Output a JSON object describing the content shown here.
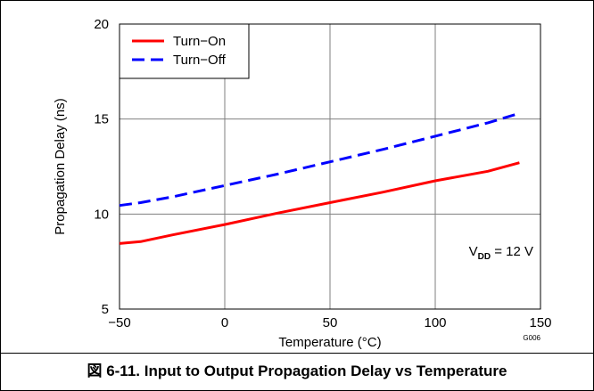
{
  "chart_data": {
    "type": "line",
    "xlabel": "Temperature (°C)",
    "ylabel": "Propagation Delay (ns)",
    "xlim": [
      -50,
      150
    ],
    "ylim": [
      5,
      20
    ],
    "xticks": [
      -50,
      0,
      50,
      100,
      150
    ],
    "xtick_labels": [
      "−50",
      "0",
      "50",
      "100",
      "150"
    ],
    "yticks": [
      5,
      10,
      15,
      20
    ],
    "ytick_labels": [
      "5",
      "10",
      "15",
      "20"
    ],
    "grid": true,
    "legend_position": "top-left",
    "series": [
      {
        "name": "Turn−On",
        "color": "#ff0000",
        "style": "solid",
        "x": [
          -50,
          -40,
          -25,
          0,
          25,
          50,
          75,
          100,
          125,
          140
        ],
        "y": [
          8.45,
          8.55,
          8.9,
          9.45,
          10.05,
          10.6,
          11.15,
          11.75,
          12.25,
          12.7
        ]
      },
      {
        "name": "Turn−Off",
        "color": "#0000ff",
        "style": "dashed",
        "x": [
          -50,
          -40,
          -25,
          0,
          25,
          50,
          75,
          100,
          125,
          140
        ],
        "y": [
          10.45,
          10.6,
          10.9,
          11.5,
          12.1,
          12.75,
          13.4,
          14.1,
          14.8,
          15.3
        ]
      }
    ],
    "annotation": {
      "label_main": "V",
      "label_sub": "DD",
      "label_rest": " = 12 V"
    },
    "figure_code": "G006",
    "caption": "図 6-11. Input to Output Propagation Delay vs Temperature"
  }
}
